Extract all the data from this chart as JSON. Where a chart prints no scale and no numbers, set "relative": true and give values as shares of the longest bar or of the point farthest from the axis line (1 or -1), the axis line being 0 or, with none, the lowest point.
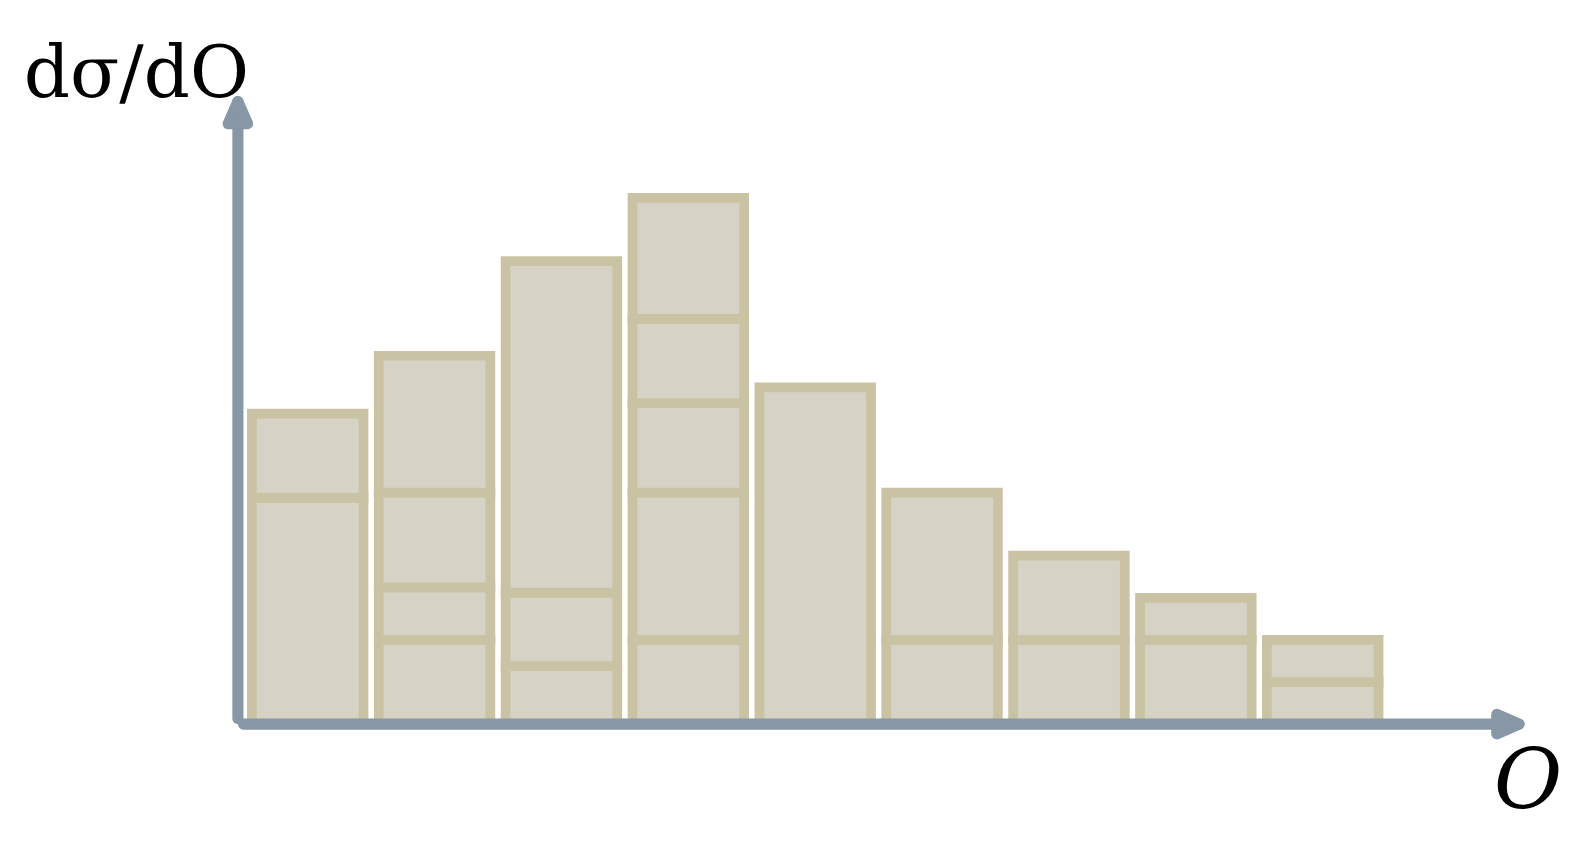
{
  "chart_data": {
    "type": "bar",
    "stacked": true,
    "relative": true,
    "xlabel": "O",
    "ylabel": "dσ/dO",
    "categories": [
      null,
      null,
      null,
      null,
      null,
      null,
      null,
      null,
      null
    ],
    "series": [
      {
        "color": "#d6d3c6",
        "values": [
          0.43,
          0.16,
          0.11,
          0.16,
          0.64,
          0.16,
          0.16,
          0.16,
          0.08
        ]
      },
      {
        "color": "#d6d3c6",
        "values": [
          0.16,
          0.1,
          0.14,
          0.28,
          null,
          0.28,
          0.16,
          0.08,
          0.08
        ]
      },
      {
        "color": "#d6d3c6",
        "values": [
          null,
          0.18,
          0.63,
          0.17,
          null,
          null,
          null,
          null,
          null
        ]
      },
      {
        "color": "#d6d3c6",
        "values": [
          null,
          0.26,
          null,
          0.16,
          null,
          null,
          null,
          null,
          null
        ]
      },
      {
        "color": "#d6d3c6",
        "values": [
          null,
          null,
          null,
          0.23,
          null,
          null,
          null,
          null,
          null
        ]
      }
    ],
    "grid": false,
    "legend": false
  }
}
